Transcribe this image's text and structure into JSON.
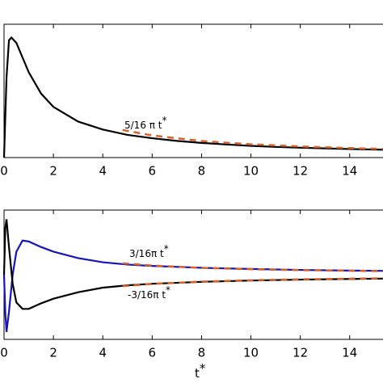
{
  "chart_data": [
    {
      "type": "line",
      "xlim": [
        0,
        15.35
      ],
      "ylim": [
        0,
        0.1
      ],
      "xticks": [
        0,
        2,
        4,
        6,
        8,
        10,
        12,
        14
      ],
      "series": [
        {
          "color": "#000000",
          "style": "solid",
          "x": [
            0,
            0.1,
            0.2,
            0.3,
            0.5,
            0.75,
            1,
            1.5,
            2,
            3,
            4,
            5,
            6,
            7,
            8,
            9,
            10,
            11,
            12,
            13,
            14,
            15.35
          ],
          "values": [
            0,
            0.06,
            0.088,
            0.09,
            0.086,
            0.075,
            0.064,
            0.048,
            0.038,
            0.027,
            0.021,
            0.017,
            0.0145,
            0.0125,
            0.011,
            0.0098,
            0.0088,
            0.008,
            0.0074,
            0.0069,
            0.0064,
            0.0059
          ]
        },
        {
          "color": "#d9622b",
          "style": "dashed",
          "x": [
            4.8,
            6,
            8,
            10,
            12,
            14,
            15.35
          ],
          "values": [
            0.0207,
            0.0166,
            0.0124,
            0.00995,
            0.0083,
            0.0071,
            0.0065
          ]
        }
      ],
      "annotations": [
        {
          "text": "5/16 π t",
          "sup": "*"
        }
      ]
    },
    {
      "type": "line",
      "xlim": [
        0,
        15.35
      ],
      "ylim": [
        -0.07,
        0.07
      ],
      "xticks": [
        0,
        2,
        4,
        6,
        8,
        10,
        12,
        14
      ],
      "xlabel": "t",
      "xlabel_sup": "*",
      "series": [
        {
          "color": "#1414b8",
          "style": "solid",
          "x": [
            0,
            0.05,
            0.1,
            0.2,
            0.35,
            0.5,
            0.75,
            1,
            1.5,
            2,
            3,
            4,
            5,
            6,
            8,
            10,
            12,
            14,
            15.35
          ],
          "values": [
            0,
            -0.04,
            -0.062,
            -0.04,
            0.0,
            0.025,
            0.037,
            0.036,
            0.03,
            0.025,
            0.018,
            0.0135,
            0.011,
            0.0095,
            0.0075,
            0.0062,
            0.0052,
            0.0045,
            0.0042
          ]
        },
        {
          "color": "#000000",
          "style": "solid",
          "x": [
            0,
            0.05,
            0.1,
            0.2,
            0.35,
            0.5,
            0.75,
            1,
            1.5,
            2,
            3,
            4,
            5,
            6,
            8,
            10,
            12,
            14,
            15.35
          ],
          "values": [
            0,
            0.05,
            0.06,
            0.03,
            -0.01,
            -0.03,
            -0.037,
            -0.037,
            -0.031,
            -0.026,
            -0.019,
            -0.014,
            -0.0115,
            -0.0098,
            -0.0077,
            -0.0063,
            -0.0053,
            -0.0046,
            -0.0042
          ]
        },
        {
          "color": "#d9622b",
          "style": "dashed",
          "x": [
            4.8,
            6,
            8,
            10,
            12,
            14,
            15.35
          ],
          "values": [
            0.0124,
            0.00995,
            0.00746,
            0.00597,
            0.00497,
            0.00426,
            0.0039
          ]
        },
        {
          "color": "#d9622b",
          "style": "dashed",
          "x": [
            4.8,
            6,
            8,
            10,
            12,
            14,
            15.35
          ],
          "values": [
            -0.0124,
            -0.00995,
            -0.00746,
            -0.00597,
            -0.00497,
            -0.00426,
            -0.0039
          ]
        }
      ],
      "annotations": [
        {
          "text": "3/16π t",
          "sup": "*"
        },
        {
          "text": "-3/16π t",
          "sup": "*"
        }
      ]
    }
  ]
}
